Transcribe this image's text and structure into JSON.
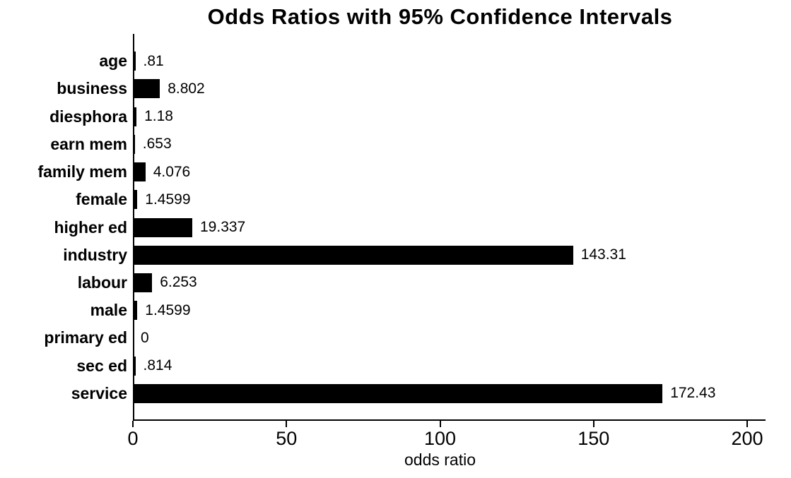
{
  "chart_data": {
    "type": "bar",
    "orientation": "horizontal",
    "title": "Odds Ratios with 95% Confidence Intervals",
    "xlabel": "odds ratio",
    "ylabel": "",
    "xlim": [
      0,
      200
    ],
    "x_ticks": [
      0,
      50,
      100,
      150,
      200
    ],
    "grid": false,
    "legend": false,
    "bar_color": "#000000",
    "text_color": "#000000",
    "background_color": "#ffffff",
    "categories": [
      "age",
      "business",
      "diesphora",
      "earn mem",
      "family mem",
      "female",
      "higher ed",
      "industry",
      "labour",
      "male",
      "primary ed",
      "sec ed",
      "service"
    ],
    "values": [
      0.81,
      8.802,
      1.18,
      0.653,
      4.076,
      1.4599,
      19.337,
      143.31,
      6.253,
      1.4599,
      0,
      0.814,
      172.43
    ],
    "value_labels": [
      ".81",
      "8.802",
      "1.18",
      ".653",
      "4.076",
      "1.4599",
      "19.337",
      "143.31",
      "6.253",
      "1.4599",
      "0",
      ".814",
      "172.43"
    ]
  }
}
